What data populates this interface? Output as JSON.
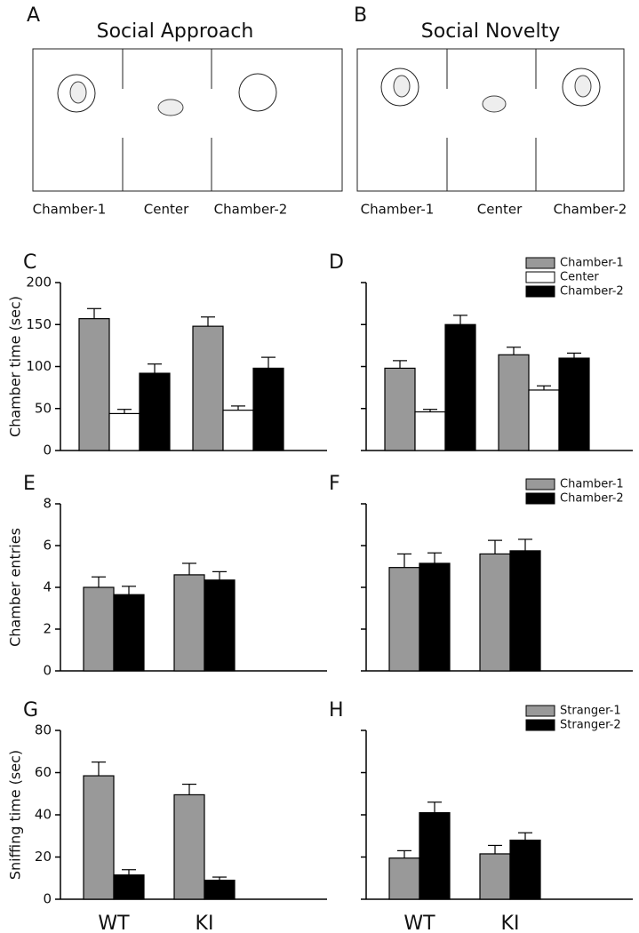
{
  "panels": [
    {
      "label": "A",
      "title": "Social Approach",
      "chambers": [
        "Chamber-1",
        "Center",
        "Chamber-2"
      ]
    },
    {
      "label": "B",
      "title": "Social Novelty",
      "chambers": [
        "Chamber-1",
        "Center",
        "Chamber-2"
      ]
    }
  ],
  "chart_data": [
    {
      "type": "bar",
      "label": "C",
      "y_label": "Chamber time (sec)",
      "categories": [
        null,
        null
      ],
      "ylim": [
        0,
        200
      ],
      "yticks": [
        0,
        50,
        100,
        150,
        200
      ],
      "tick_labels": true,
      "series": [
        {
          "color": "#999999",
          "values": [
            157,
            148
          ],
          "errors": [
            12,
            11
          ]
        },
        {
          "color": "#ffffff",
          "values": [
            44,
            48
          ],
          "errors": [
            5,
            5
          ]
        },
        {
          "color": "#000000",
          "values": [
            92,
            98
          ],
          "errors": [
            11,
            13
          ]
        }
      ]
    },
    {
      "type": "bar",
      "label": "D",
      "categories": [
        null,
        null
      ],
      "ylim": [
        0,
        200
      ],
      "yticks": [
        0,
        50,
        100,
        150,
        200
      ],
      "tick_labels": false,
      "legend": "upper right",
      "series": [
        {
          "name": "Chamber-1",
          "color": "#999999",
          "values": [
            98,
            114
          ],
          "errors": [
            9,
            9
          ]
        },
        {
          "name": "Center",
          "color": "#ffffff",
          "values": [
            46,
            72
          ],
          "errors": [
            3,
            5
          ]
        },
        {
          "name": "Chamber-2",
          "color": "#000000",
          "values": [
            150,
            110
          ],
          "errors": [
            11,
            6
          ]
        }
      ]
    },
    {
      "type": "bar",
      "label": "E",
      "y_label": "Chamber entries",
      "categories": [
        null,
        null
      ],
      "ylim": [
        0,
        8
      ],
      "yticks": [
        0,
        2,
        4,
        6,
        8
      ],
      "tick_labels": true,
      "series": [
        {
          "color": "#999999",
          "values": [
            4.0,
            4.6
          ],
          "errors": [
            0.5,
            0.55
          ]
        },
        {
          "color": "#000000",
          "values": [
            3.65,
            4.35
          ],
          "errors": [
            0.4,
            0.4
          ]
        }
      ]
    },
    {
      "type": "bar",
      "label": "F",
      "categories": [
        null,
        null
      ],
      "ylim": [
        0,
        8
      ],
      "yticks": [
        0,
        2,
        4,
        6,
        8
      ],
      "tick_labels": false,
      "legend": "upper right",
      "series": [
        {
          "name": "Chamber-1",
          "color": "#999999",
          "values": [
            4.95,
            5.6
          ],
          "errors": [
            0.65,
            0.65
          ]
        },
        {
          "name": "Chamber-2",
          "color": "#000000",
          "values": [
            5.15,
            5.75
          ],
          "errors": [
            0.5,
            0.55
          ]
        }
      ]
    },
    {
      "type": "bar",
      "label": "G",
      "y_label": "Sniffing time (sec)",
      "categories": [
        "WT",
        "KI"
      ],
      "ylim": [
        0,
        80
      ],
      "yticks": [
        0,
        20,
        40,
        60,
        80
      ],
      "tick_labels": true,
      "series": [
        {
          "color": "#999999",
          "values": [
            58.5,
            49.5
          ],
          "errors": [
            6.5,
            5
          ]
        },
        {
          "color": "#000000",
          "values": [
            11.5,
            9
          ],
          "errors": [
            2.5,
            1.5
          ]
        }
      ]
    },
    {
      "type": "bar",
      "label": "H",
      "categories": [
        "WT",
        "KI"
      ],
      "ylim": [
        0,
        80
      ],
      "yticks": [
        0,
        20,
        40,
        60,
        80
      ],
      "tick_labels": false,
      "legend": "upper right",
      "series": [
        {
          "name": "Stranger-1",
          "color": "#999999",
          "values": [
            19.5,
            21.5
          ],
          "errors": [
            3.5,
            4
          ]
        },
        {
          "name": "Stranger-2",
          "color": "#000000",
          "values": [
            41,
            28
          ],
          "errors": [
            5,
            3.5
          ]
        }
      ]
    }
  ]
}
